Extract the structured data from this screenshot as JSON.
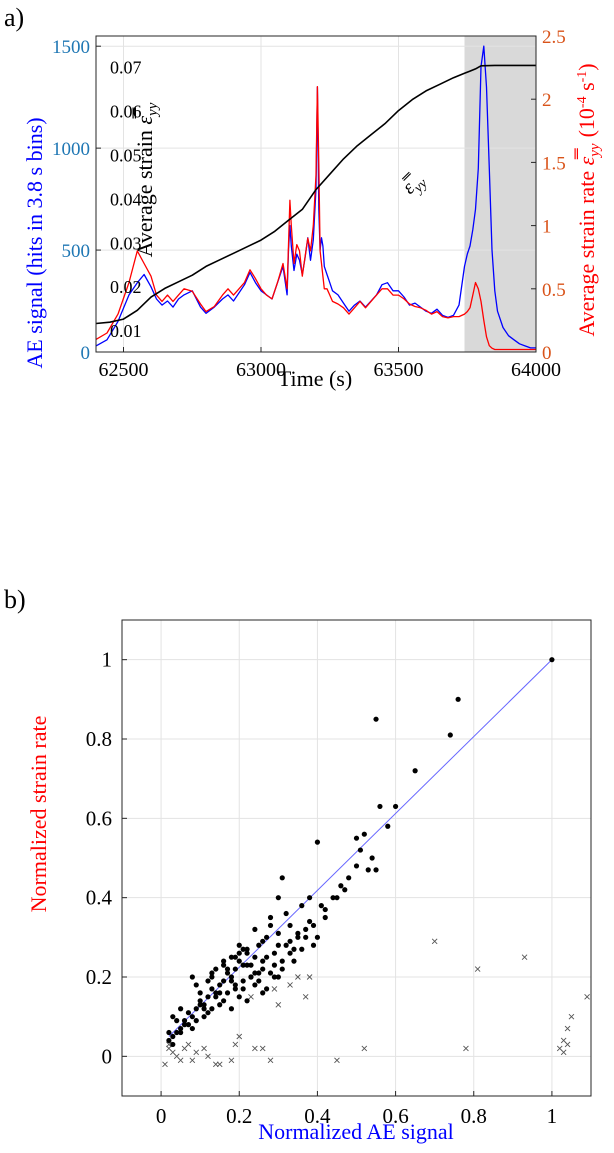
{
  "chart_data": [
    {
      "panel_label": "a)",
      "type": "line",
      "xlabel": "Time (s)",
      "xlim": [
        62400,
        64000
      ],
      "x_ticks": [
        "62500",
        "63000",
        "63500",
        "64000"
      ],
      "left_axis": {
        "label": "AE signal (hits in 3.8 s bins)",
        "ylim": [
          0,
          1550
        ],
        "ticks": [
          "0",
          "500",
          "1000",
          "1500"
        ],
        "color": "#1f77b4"
      },
      "right_axis": {
        "label_main": "Average strain rate ",
        "label_symbol": "ε̿",
        "label_subscript": "yy",
        "label_units_pre": "(10",
        "label_exponent": "-4",
        "label_mid": " s",
        "label_exponent2": "-1",
        "label_units_post": ")",
        "ylim": [
          0,
          2.5
        ],
        "ticks": [
          "0",
          "0.5",
          "1",
          "1.5",
          "2",
          "2.5"
        ],
        "color": "#d95319"
      },
      "strain_axis": {
        "label_main": "Average strain ",
        "label_symbol": "ε̿",
        "label_subscript": "yy",
        "ylim": [
          0.005,
          0.077
        ],
        "ticks": [
          "0.01",
          "0.02",
          "0.03",
          "0.04",
          "0.05",
          "0.06",
          "0.07"
        ]
      },
      "strain_curve_label": {
        "symbol": "ε̿",
        "subscript": "yy"
      },
      "shaded_region": [
        63740,
        64000
      ],
      "series": [
        {
          "key": "ae",
          "axis": "left",
          "color": "#0000ff",
          "x": [
            62400,
            62440,
            62480,
            62520,
            62550,
            62575,
            62600,
            62620,
            62640,
            62660,
            62680,
            62700,
            62720,
            62750,
            62780,
            62800,
            62830,
            62860,
            62880,
            62900,
            62920,
            62940,
            62960,
            62980,
            63000,
            63020,
            63040,
            63060,
            63080,
            63095,
            63100,
            63105,
            63110,
            63120,
            63130,
            63140,
            63150,
            63160,
            63170,
            63180,
            63190,
            63200,
            63205,
            63210,
            63215,
            63220,
            63225,
            63230,
            63240,
            63250,
            63260,
            63280,
            63300,
            63320,
            63340,
            63360,
            63380,
            63400,
            63420,
            63440,
            63460,
            63480,
            63500,
            63520,
            63540,
            63560,
            63580,
            63600,
            63620,
            63640,
            63660,
            63680,
            63700,
            63720,
            63740,
            63750,
            63760,
            63770,
            63780,
            63790,
            63800,
            63810,
            63820,
            63830,
            63840,
            63850,
            63860,
            63880,
            63900,
            63920,
            63940,
            63960,
            63980,
            64000
          ],
          "y": [
            30,
            60,
            150,
            280,
            340,
            380,
            320,
            260,
            230,
            250,
            220,
            260,
            280,
            300,
            220,
            190,
            220,
            260,
            280,
            250,
            290,
            330,
            390,
            340,
            300,
            280,
            260,
            340,
            420,
            280,
            500,
            620,
            520,
            400,
            480,
            450,
            380,
            460,
            560,
            450,
            550,
            800,
            1300,
            700,
            500,
            560,
            520,
            420,
            380,
            340,
            300,
            280,
            240,
            200,
            230,
            250,
            220,
            250,
            280,
            330,
            340,
            300,
            300,
            270,
            230,
            240,
            220,
            200,
            190,
            210,
            180,
            170,
            180,
            230,
            420,
            480,
            520,
            600,
            700,
            900,
            1400,
            1500,
            1300,
            900,
            500,
            300,
            200,
            120,
            80,
            60,
            40,
            30,
            20,
            20
          ]
        },
        {
          "key": "strain_rate",
          "axis": "right",
          "color": "#ff0000",
          "x": [
            62400,
            62440,
            62480,
            62520,
            62550,
            62575,
            62600,
            62620,
            62640,
            62660,
            62680,
            62700,
            62720,
            62750,
            62780,
            62800,
            62830,
            62860,
            62880,
            62900,
            62920,
            62940,
            62960,
            62980,
            63000,
            63020,
            63040,
            63060,
            63080,
            63095,
            63100,
            63105,
            63110,
            63120,
            63130,
            63140,
            63150,
            63160,
            63170,
            63180,
            63190,
            63200,
            63205,
            63210,
            63215,
            63220,
            63225,
            63230,
            63240,
            63250,
            63260,
            63280,
            63300,
            63320,
            63340,
            63360,
            63380,
            63400,
            63420,
            63440,
            63460,
            63480,
            63500,
            63520,
            63540,
            63560,
            63580,
            63600,
            63620,
            63640,
            63660,
            63680,
            63700,
            63720,
            63740,
            63750,
            63760,
            63770,
            63780,
            63790,
            63800,
            63810,
            63820,
            63830,
            63840,
            63850,
            63860,
            63880,
            63900,
            63920,
            63940,
            63960,
            63980,
            64000
          ],
          "y": [
            0.1,
            0.15,
            0.3,
            0.55,
            0.8,
            0.7,
            0.6,
            0.45,
            0.4,
            0.45,
            0.4,
            0.45,
            0.5,
            0.48,
            0.38,
            0.32,
            0.36,
            0.45,
            0.5,
            0.45,
            0.5,
            0.55,
            0.65,
            0.58,
            0.5,
            0.45,
            0.42,
            0.55,
            0.7,
            0.5,
            0.85,
            1.2,
            1.0,
            0.7,
            0.85,
            0.8,
            0.6,
            0.75,
            0.9,
            0.8,
            1.0,
            1.4,
            2.1,
            1.5,
            0.8,
            0.7,
            0.6,
            0.5,
            0.5,
            0.45,
            0.4,
            0.38,
            0.35,
            0.3,
            0.35,
            0.4,
            0.35,
            0.4,
            0.45,
            0.5,
            0.5,
            0.45,
            0.45,
            0.42,
            0.38,
            0.36,
            0.35,
            0.33,
            0.3,
            0.32,
            0.28,
            0.27,
            0.28,
            0.28,
            0.3,
            0.32,
            0.35,
            0.45,
            0.55,
            0.5,
            0.4,
            0.25,
            0.12,
            0.05,
            0.03,
            0.02,
            0.02,
            0.02,
            0.02,
            0.02,
            0.02,
            0.02,
            0.02,
            0.02
          ]
        },
        {
          "key": "strain",
          "axis": "strain",
          "color": "#000000",
          "x": [
            62400,
            62450,
            62500,
            62550,
            62600,
            62650,
            62700,
            62750,
            62800,
            62850,
            62900,
            62950,
            63000,
            63050,
            63100,
            63150,
            63200,
            63250,
            63300,
            63350,
            63400,
            63450,
            63500,
            63550,
            63600,
            63650,
            63700,
            63740,
            63760,
            63780,
            63800,
            63850,
            63900,
            63950,
            64000
          ],
          "y": [
            0.0115,
            0.0118,
            0.0125,
            0.0145,
            0.0175,
            0.0195,
            0.021,
            0.0225,
            0.0245,
            0.026,
            0.0275,
            0.029,
            0.0305,
            0.0325,
            0.035,
            0.0375,
            0.042,
            0.0455,
            0.049,
            0.052,
            0.0545,
            0.057,
            0.06,
            0.0625,
            0.0645,
            0.066,
            0.0675,
            0.0685,
            0.069,
            0.0695,
            0.0702,
            0.0703,
            0.0703,
            0.0703,
            0.0703
          ]
        }
      ]
    },
    {
      "panel_label": "b)",
      "type": "scatter",
      "xlabel": "Normalized AE signal",
      "ylabel": "Normalized strain rate",
      "xlim": [
        -0.1,
        1.1
      ],
      "ylim": [
        -0.1,
        1.1
      ],
      "x_ticks": [
        "0",
        "0.2",
        "0.4",
        "0.6",
        "0.8",
        "1"
      ],
      "y_ticks": [
        "0",
        "0.2",
        "0.4",
        "0.6",
        "0.8",
        "1"
      ],
      "grid": true,
      "xlabel_color": "#0000ff",
      "ylabel_color": "#ff0000",
      "fit_line": {
        "x": [
          0.02,
          1.0
        ],
        "y": [
          0.05,
          1.0
        ],
        "color": "#6666ff"
      },
      "points": {
        "x": [
          1.0,
          0.76,
          0.55,
          0.74,
          0.65,
          0.56,
          0.6,
          0.58,
          0.5,
          0.52,
          0.54,
          0.55,
          0.4,
          0.48,
          0.5,
          0.51,
          0.53,
          0.47,
          0.45,
          0.42,
          0.38,
          0.36,
          0.33,
          0.31,
          0.3,
          0.28,
          0.35,
          0.37,
          0.39,
          0.4,
          0.32,
          0.27,
          0.25,
          0.24,
          0.22,
          0.21,
          0.2,
          0.19,
          0.18,
          0.17,
          0.16,
          0.15,
          0.14,
          0.13,
          0.12,
          0.11,
          0.1,
          0.09,
          0.08,
          0.07,
          0.06,
          0.05,
          0.04,
          0.03,
          0.02,
          0.26,
          0.29,
          0.34,
          0.23,
          0.21,
          0.19,
          0.17,
          0.15,
          0.13,
          0.11,
          0.09,
          0.07,
          0.05,
          0.31,
          0.28,
          0.24,
          0.2,
          0.16,
          0.12,
          0.08,
          0.22,
          0.18,
          0.14,
          0.1,
          0.06,
          0.27,
          0.23,
          0.19,
          0.15,
          0.11,
          0.33,
          0.29,
          0.25,
          0.21,
          0.17,
          0.13,
          0.09,
          0.36,
          0.3,
          0.26,
          0.22,
          0.18,
          0.14,
          0.24,
          0.2,
          0.16,
          0.12,
          0.28,
          0.32,
          0.35,
          0.38,
          0.42,
          0.44,
          0.46,
          0.34,
          0.3,
          0.26,
          0.22,
          0.18,
          0.02,
          0.03,
          0.04,
          0.03,
          0.05,
          0.2,
          0.23,
          0.25,
          0.27,
          0.29,
          0.31,
          0.24,
          0.19,
          0.16,
          0.13,
          0.1,
          0.08,
          0.21,
          0.26,
          0.3,
          0.33,
          0.37,
          0.39,
          0.41
        ],
        "y": [
          1.0,
          0.9,
          0.85,
          0.81,
          0.72,
          0.63,
          0.63,
          0.58,
          0.55,
          0.56,
          0.5,
          0.47,
          0.54,
          0.45,
          0.48,
          0.52,
          0.47,
          0.42,
          0.4,
          0.35,
          0.4,
          0.38,
          0.33,
          0.45,
          0.4,
          0.35,
          0.3,
          0.32,
          0.28,
          0.3,
          0.28,
          0.3,
          0.28,
          0.25,
          0.27,
          0.23,
          0.24,
          0.22,
          0.2,
          0.21,
          0.19,
          0.18,
          0.16,
          0.17,
          0.15,
          0.13,
          0.14,
          0.12,
          0.1,
          0.11,
          0.09,
          0.07,
          0.06,
          0.05,
          0.04,
          0.22,
          0.26,
          0.27,
          0.2,
          0.19,
          0.17,
          0.16,
          0.13,
          0.12,
          0.1,
          0.09,
          0.08,
          0.06,
          0.24,
          0.21,
          0.18,
          0.15,
          0.14,
          0.11,
          0.07,
          0.23,
          0.19,
          0.15,
          0.13,
          0.08,
          0.25,
          0.2,
          0.18,
          0.16,
          0.12,
          0.29,
          0.23,
          0.21,
          0.17,
          0.22,
          0.2,
          0.18,
          0.27,
          0.31,
          0.29,
          0.26,
          0.25,
          0.22,
          0.32,
          0.28,
          0.24,
          0.19,
          0.33,
          0.36,
          0.31,
          0.34,
          0.37,
          0.4,
          0.43,
          0.24,
          0.2,
          0.16,
          0.14,
          0.12,
          0.06,
          0.03,
          0.09,
          0.1,
          0.12,
          0.26,
          0.23,
          0.19,
          0.17,
          0.2,
          0.22,
          0.21,
          0.25,
          0.23,
          0.21,
          0.16,
          0.2,
          0.27,
          0.24,
          0.28,
          0.26,
          0.3,
          0.33,
          0.38
        ]
      },
      "outliers": {
        "x": [
          0.02,
          0.04,
          0.05,
          0.07,
          0.09,
          0.12,
          0.14,
          0.18,
          0.2,
          0.23,
          0.26,
          0.28,
          0.3,
          0.33,
          0.35,
          0.37,
          0.38,
          0.45,
          0.52,
          0.7,
          0.78,
          0.81,
          0.93,
          1.02,
          1.03,
          1.04,
          1.05,
          1.09,
          1.03,
          1.04,
          0.06,
          0.08,
          0.11,
          0.15,
          0.19,
          0.03,
          0.02,
          0.24,
          0.29,
          0.01
        ],
        "y": [
          0.02,
          0.0,
          -0.01,
          0.03,
          0.01,
          0.0,
          -0.02,
          -0.01,
          0.05,
          0.15,
          0.02,
          -0.01,
          0.13,
          0.18,
          0.2,
          0.15,
          0.2,
          -0.01,
          0.02,
          0.29,
          0.02,
          0.22,
          0.25,
          0.02,
          0.04,
          0.07,
          0.1,
          0.15,
          0.01,
          0.03,
          0.02,
          -0.01,
          0.02,
          -0.02,
          0.03,
          0.01,
          0.03,
          0.02,
          0.17,
          -0.02
        ]
      }
    }
  ]
}
